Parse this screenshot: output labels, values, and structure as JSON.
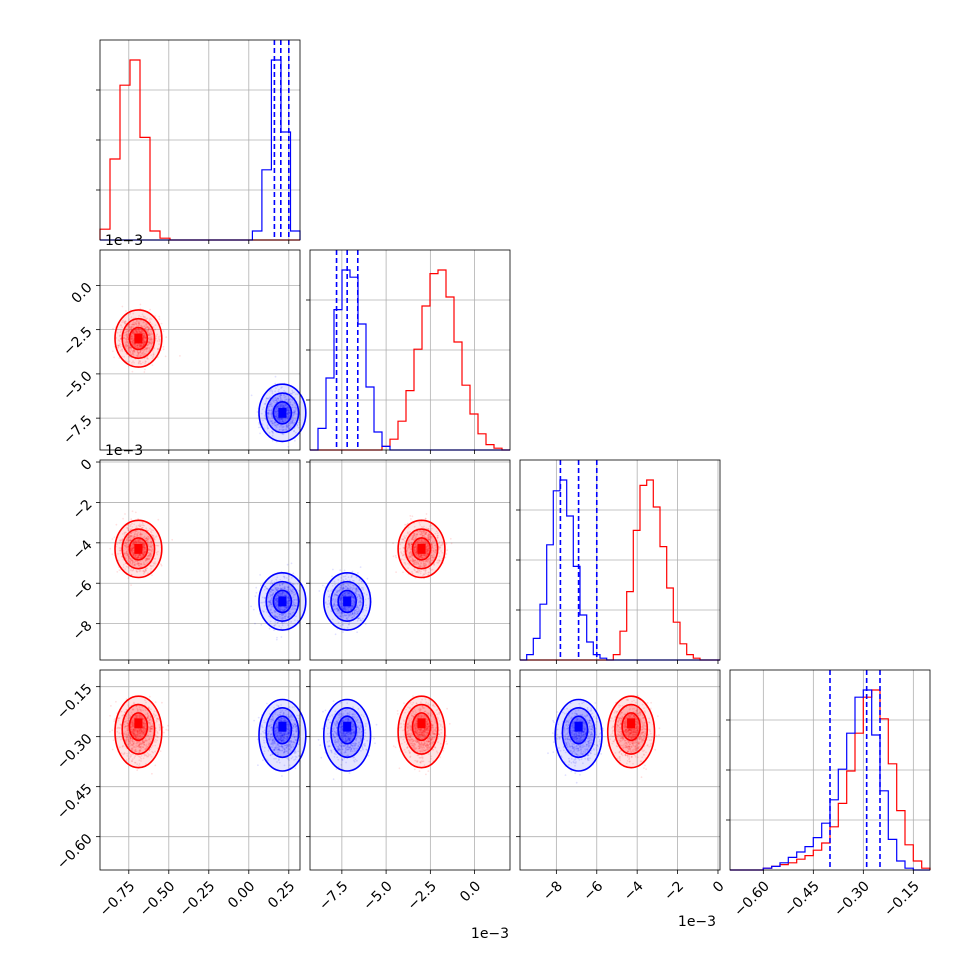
{
  "colors": {
    "series_a": "#ff0000",
    "series_b": "#0000ff",
    "grid": "#b0b0b0",
    "frame": "#000000"
  },
  "chart_data": {
    "type": "corner",
    "grid": true,
    "series": [
      {
        "color": "red",
        "params": {
          "p1_center": -0.69,
          "p2_center": -0.003,
          "p3_center": -0.0043,
          "p4_center": -0.26
        }
      },
      {
        "color": "blue",
        "params": {
          "p1_center": 0.21,
          "p2_center": -0.0072,
          "p3_center": -0.0069,
          "p4_center": -0.27
        },
        "quantiles": {
          "p1": [
            0.16,
            0.2,
            0.25
          ],
          "p2": [
            -0.0078,
            -0.0072,
            -0.0066
          ],
          "p3": [
            -0.0078,
            -0.0069,
            -0.006
          ],
          "p4": [
            -0.4,
            -0.29,
            -0.25
          ]
        }
      }
    ],
    "axes": [
      {
        "range": [
          -0.93,
          0.32
        ],
        "ticks": [
          "−0.75",
          "−0.50",
          "−0.25",
          "0.00",
          "0.25"
        ],
        "tick_values": [
          -0.75,
          -0.5,
          -0.25,
          0,
          0.25
        ],
        "offset": ""
      },
      {
        "range": [
          -0.0093,
          0.002
        ],
        "ticks": [
          "−7.5",
          "−5.0",
          "−2.5",
          "0.0"
        ],
        "tick_values": [
          -0.0075,
          -0.005,
          -0.0025,
          0
        ],
        "offset": "1e−3"
      },
      {
        "range": [
          -0.0098,
          0.0001
        ],
        "ticks": [
          "−8",
          "−6",
          "−4",
          "−2",
          "0"
        ],
        "tick_values": [
          -0.008,
          -0.006,
          -0.004,
          -0.002,
          0
        ],
        "offset": "1e−3"
      },
      {
        "range": [
          -0.7,
          -0.1
        ],
        "ticks": [
          "−0.60",
          "−0.45",
          "−0.30",
          "−0.15"
        ],
        "tick_values": [
          -0.6,
          -0.45,
          -0.3,
          -0.15
        ],
        "offset": ""
      }
    ],
    "hist_a": {
      "p1": [
        0.6,
        4.5,
        8.6,
        10.0,
        5.7,
        0.5,
        0.1,
        0,
        0,
        0,
        0,
        0,
        0,
        0,
        0,
        0,
        0,
        0,
        0,
        0
      ],
      "p2": [
        0,
        0,
        0,
        0,
        0,
        0,
        0,
        0,
        0,
        0.2,
        0.6,
        1.6,
        3.3,
        5.6,
        8.0,
        9.8,
        10.0,
        8.5,
        6.0,
        3.6,
        2.0,
        0.9,
        0.3,
        0.1,
        0
      ],
      "p3": [
        0,
        0,
        0,
        0,
        0,
        0,
        0,
        0,
        0,
        0,
        0,
        0,
        0,
        0,
        0.3,
        1.6,
        3.8,
        7.2,
        9.7,
        10.0,
        8.5,
        6.3,
        4.0,
        2.1,
        0.9,
        0.3,
        0.1,
        0,
        0,
        0
      ],
      "p4": [
        0,
        0,
        0,
        0,
        0.1,
        0.2,
        0.3,
        0.4,
        0.6,
        0.8,
        1.1,
        1.5,
        2.4,
        3.7,
        5.5,
        7.6,
        9.6,
        10.0,
        8.4,
        5.9,
        3.3,
        1.4,
        0.5,
        0.1
      ]
    },
    "hist_b": {
      "p1": [
        0,
        0,
        0,
        0,
        0,
        0,
        0,
        0,
        0,
        0,
        0,
        0,
        0,
        0,
        0,
        0,
        0.5,
        3.9,
        10.0,
        6.0,
        0.5
      ],
      "p2": [
        0,
        1.2,
        4.0,
        7.8,
        10.0,
        9.6,
        7.0,
        3.5,
        1.0,
        0.2,
        0,
        0,
        0,
        0,
        0,
        0,
        0,
        0,
        0,
        0,
        0,
        0,
        0,
        0,
        0
      ],
      "p3": [
        0,
        0.3,
        1.2,
        3.1,
        6.4,
        9.4,
        10.0,
        8.0,
        5.2,
        2.5,
        1.0,
        0.3,
        0.1,
        0,
        0,
        0,
        0,
        0,
        0,
        0,
        0,
        0,
        0,
        0,
        0,
        0,
        0,
        0,
        0,
        0
      ],
      "p4": [
        0,
        0,
        0,
        0,
        0.1,
        0.2,
        0.4,
        0.7,
        1.0,
        1.3,
        1.8,
        2.6,
        3.9,
        5.6,
        7.6,
        9.6,
        10.0,
        7.5,
        4.4,
        1.7,
        0.5,
        0.1,
        0,
        0
      ]
    }
  }
}
